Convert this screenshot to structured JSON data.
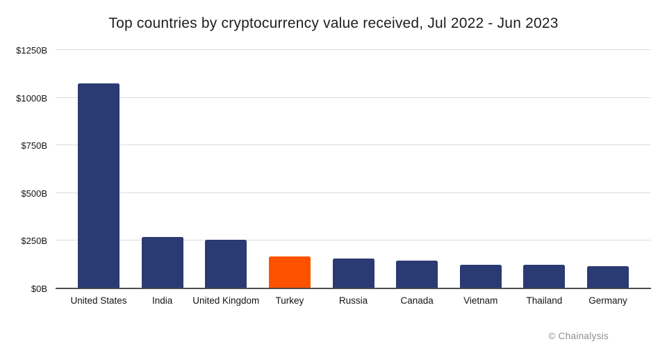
{
  "title": "Top countries by cryptocurrency value received, Jul 2022 - Jun 2023",
  "attribution": "© Chainalysis",
  "colors": {
    "bar": "#2A3A72",
    "highlight_bar": "#FD5200",
    "gridline": "#DCDCDC",
    "axis_line": "#4D4D4D",
    "title_text": "#1E1E1E",
    "tick_text": "#131313",
    "attribution_text": "#8E8E8E",
    "background": "#FFFFFF"
  },
  "chart_data": {
    "type": "bar",
    "title": "Top countries by cryptocurrency value received, Jul 2022 - Jun 2023",
    "categories": [
      "United States",
      "India",
      "United Kingdom",
      "Turkey",
      "Russia",
      "Canada",
      "Vietnam",
      "Thailand",
      "Germany"
    ],
    "values": [
      1070,
      268,
      252,
      165,
      155,
      141,
      122,
      120,
      112
    ],
    "values_unit": "billion USD",
    "highlight_category": "Turkey",
    "xlabel": "",
    "ylabel": "",
    "ylim": [
      0,
      1250
    ],
    "ytick_step": 250,
    "ytick_labels": [
      "$0B",
      "$250B",
      "$500B",
      "$750B",
      "$1000B",
      "$1250B"
    ],
    "grid": true,
    "legend": false
  }
}
